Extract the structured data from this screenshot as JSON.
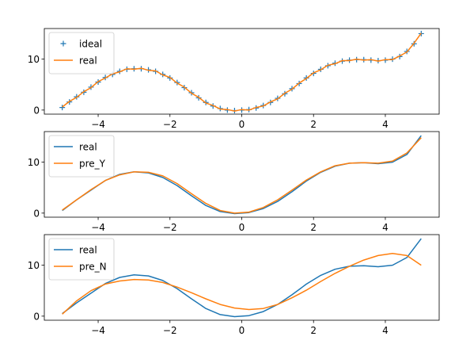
{
  "colors": {
    "blue": "#1f77b4",
    "orange": "#ff7f0e"
  },
  "chart_data": [
    {
      "type": "line",
      "title": "",
      "xlabel": "",
      "ylabel": "",
      "xlim": [
        -5.5,
        5.5
      ],
      "ylim": [
        -0.8,
        16.0
      ],
      "xticks": [
        -4,
        -2,
        0,
        2,
        4
      ],
      "xticklabels": [
        "−4",
        "−2",
        "0",
        "2",
        "4"
      ],
      "yticks": [
        0,
        10
      ],
      "yticklabels": [
        "0",
        "10"
      ],
      "grid": false,
      "legend": "top-left",
      "series": [
        {
          "name": "ideal",
          "style": "markers-plus",
          "color": "#1f77b4",
          "x": [
            -5.0,
            -4.8,
            -4.6,
            -4.4,
            -4.2,
            -4.0,
            -3.8,
            -3.6,
            -3.4,
            -3.2,
            -3.0,
            -2.8,
            -2.6,
            -2.4,
            -2.2,
            -2.0,
            -1.8,
            -1.6,
            -1.4,
            -1.2,
            -1.0,
            -0.8,
            -0.6,
            -0.4,
            -0.2,
            0.0,
            0.2,
            0.4,
            0.6,
            0.8,
            1.0,
            1.2,
            1.4,
            1.6,
            1.8,
            2.0,
            2.2,
            2.4,
            2.6,
            2.8,
            3.0,
            3.2,
            3.4,
            3.6,
            3.8,
            4.0,
            4.2,
            4.4,
            4.6,
            4.8,
            5.0
          ],
          "y": [
            0.5,
            1.6,
            2.6,
            3.5,
            4.5,
            5.5,
            6.4,
            7.0,
            7.6,
            8.0,
            8.1,
            8.1,
            7.9,
            7.6,
            7.0,
            6.3,
            5.4,
            4.4,
            3.4,
            2.4,
            1.5,
            0.8,
            0.3,
            0.0,
            -0.1,
            0.0,
            0.1,
            0.4,
            0.9,
            1.5,
            2.3,
            3.2,
            4.2,
            5.2,
            6.3,
            7.2,
            8.0,
            8.7,
            9.2,
            9.6,
            9.8,
            9.9,
            9.9,
            9.8,
            9.7,
            9.8,
            10.0,
            10.5,
            11.5,
            13.0,
            15.0
          ]
        },
        {
          "name": "real",
          "style": "line",
          "color": "#ff7f0e",
          "x": [
            -5.0,
            -4.8,
            -4.6,
            -4.4,
            -4.2,
            -4.0,
            -3.8,
            -3.6,
            -3.4,
            -3.2,
            -3.0,
            -2.8,
            -2.6,
            -2.4,
            -2.2,
            -2.0,
            -1.8,
            -1.6,
            -1.4,
            -1.2,
            -1.0,
            -0.8,
            -0.6,
            -0.4,
            -0.2,
            0.0,
            0.2,
            0.4,
            0.6,
            0.8,
            1.0,
            1.2,
            1.4,
            1.6,
            1.8,
            2.0,
            2.2,
            2.4,
            2.6,
            2.8,
            3.0,
            3.2,
            3.4,
            3.6,
            3.8,
            4.0,
            4.2,
            4.4,
            4.6,
            4.8,
            5.0
          ],
          "y": [
            0.6,
            1.7,
            2.5,
            3.6,
            4.4,
            5.6,
            6.3,
            7.1,
            7.5,
            8.1,
            8.0,
            8.2,
            7.8,
            7.7,
            6.9,
            6.4,
            5.3,
            4.5,
            3.3,
            2.5,
            1.4,
            0.9,
            0.2,
            0.1,
            -0.2,
            0.1,
            0.0,
            0.5,
            0.8,
            1.6,
            2.2,
            3.3,
            4.1,
            5.3,
            6.2,
            7.3,
            7.9,
            8.8,
            9.1,
            9.7,
            9.7,
            10.0,
            9.8,
            9.9,
            9.6,
            9.9,
            9.9,
            10.6,
            11.4,
            13.1,
            15.1
          ]
        }
      ]
    },
    {
      "type": "line",
      "title": "",
      "xlabel": "",
      "ylabel": "",
      "xlim": [
        -5.5,
        5.5
      ],
      "ylim": [
        -0.8,
        16.0
      ],
      "xticks": [
        -4,
        -2,
        0,
        2,
        4
      ],
      "xticklabels": [
        "−4",
        "−2",
        "0",
        "2",
        "4"
      ],
      "yticks": [
        0,
        10
      ],
      "yticklabels": [
        "0",
        "10"
      ],
      "grid": false,
      "legend": "top-left",
      "series": [
        {
          "name": "real",
          "style": "line",
          "color": "#1f77b4",
          "x": [
            -5.0,
            -4.6,
            -4.2,
            -3.8,
            -3.4,
            -3.0,
            -2.6,
            -2.2,
            -1.8,
            -1.4,
            -1.0,
            -0.6,
            -0.2,
            0.2,
            0.6,
            1.0,
            1.4,
            1.8,
            2.2,
            2.6,
            3.0,
            3.4,
            3.8,
            4.2,
            4.6,
            5.0
          ],
          "y": [
            0.5,
            2.6,
            4.5,
            6.4,
            7.6,
            8.1,
            7.9,
            7.0,
            5.4,
            3.4,
            1.5,
            0.3,
            -0.1,
            0.1,
            0.9,
            2.3,
            4.2,
            6.3,
            8.0,
            9.2,
            9.8,
            9.9,
            9.7,
            10.0,
            11.5,
            15.2
          ]
        },
        {
          "name": "pre_Y",
          "style": "line",
          "color": "#ff7f0e",
          "x": [
            -5.0,
            -4.6,
            -4.2,
            -3.8,
            -3.4,
            -3.0,
            -2.6,
            -2.2,
            -1.8,
            -1.4,
            -1.0,
            -0.6,
            -0.2,
            0.2,
            0.6,
            1.0,
            1.4,
            1.8,
            2.2,
            2.6,
            3.0,
            3.4,
            3.8,
            4.2,
            4.6,
            5.0
          ],
          "y": [
            0.6,
            2.6,
            4.6,
            6.4,
            7.5,
            8.1,
            8.0,
            7.3,
            5.8,
            3.8,
            1.9,
            0.5,
            0.0,
            0.2,
            1.1,
            2.6,
            4.5,
            6.5,
            8.1,
            9.3,
            9.8,
            9.9,
            9.8,
            10.2,
            11.8,
            14.8
          ]
        }
      ]
    },
    {
      "type": "line",
      "title": "",
      "xlabel": "",
      "ylabel": "",
      "xlim": [
        -5.5,
        5.5
      ],
      "ylim": [
        -0.8,
        16.0
      ],
      "xticks": [
        -4,
        -2,
        0,
        2,
        4
      ],
      "xticklabels": [
        "−4",
        "−2",
        "0",
        "2",
        "4"
      ],
      "yticks": [
        0,
        10
      ],
      "yticklabels": [
        "0",
        "10"
      ],
      "grid": false,
      "legend": "top-left",
      "series": [
        {
          "name": "real",
          "style": "line",
          "color": "#1f77b4",
          "x": [
            -5.0,
            -4.6,
            -4.2,
            -3.8,
            -3.4,
            -3.0,
            -2.6,
            -2.2,
            -1.8,
            -1.4,
            -1.0,
            -0.6,
            -0.2,
            0.2,
            0.6,
            1.0,
            1.4,
            1.8,
            2.2,
            2.6,
            3.0,
            3.4,
            3.8,
            4.2,
            4.6,
            5.0
          ],
          "y": [
            0.5,
            2.6,
            4.5,
            6.4,
            7.6,
            8.1,
            7.9,
            7.0,
            5.4,
            3.4,
            1.5,
            0.3,
            -0.1,
            0.1,
            0.9,
            2.3,
            4.2,
            6.3,
            8.0,
            9.2,
            9.8,
            9.9,
            9.7,
            10.0,
            11.5,
            15.2
          ]
        },
        {
          "name": "pre_N",
          "style": "line",
          "color": "#ff7f0e",
          "x": [
            -5.0,
            -4.6,
            -4.2,
            -3.8,
            -3.4,
            -3.0,
            -2.6,
            -2.2,
            -1.8,
            -1.4,
            -1.0,
            -0.6,
            -0.2,
            0.2,
            0.6,
            1.0,
            1.4,
            1.8,
            2.2,
            2.6,
            3.0,
            3.4,
            3.8,
            4.2,
            4.6,
            5.0
          ],
          "y": [
            0.4,
            3.0,
            5.0,
            6.3,
            6.9,
            7.2,
            7.1,
            6.6,
            5.7,
            4.6,
            3.4,
            2.3,
            1.6,
            1.3,
            1.5,
            2.3,
            3.6,
            5.1,
            6.8,
            8.4,
            9.8,
            11.0,
            11.9,
            12.3,
            11.9,
            10.0
          ]
        }
      ]
    }
  ]
}
